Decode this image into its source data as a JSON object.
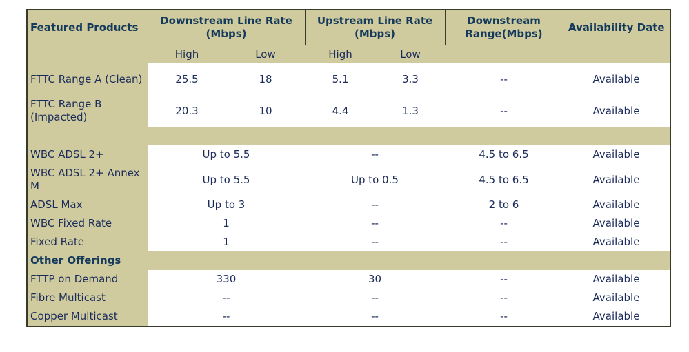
{
  "header": {
    "featured": "Featured Products",
    "downstream": "Downstream Line Rate (Mbps)",
    "upstream": "Upstream Line Rate (Mbps)",
    "range": "Downstream Range(Mbps)",
    "availability": "Availability Date"
  },
  "subheader": {
    "high": "High",
    "low": "Low"
  },
  "fttc_rows": [
    {
      "product": "FTTC Range A (Clean)",
      "down_high": "25.5",
      "down_low": "18",
      "up_high": "5.1",
      "up_low": "3.3",
      "range": "--",
      "availability": "Available"
    },
    {
      "product": "FTTC Range B (Impacted)",
      "down_high": "20.3",
      "down_low": "10",
      "up_high": "4.4",
      "up_low": "1.3",
      "range": "--",
      "availability": "Available"
    }
  ],
  "other_rows": [
    {
      "product": "WBC ADSL 2+",
      "down": "Up to 5.5",
      "up": "--",
      "range": "4.5 to 6.5",
      "availability": "Available"
    },
    {
      "product": "WBC ADSL 2+ Annex M",
      "down": "Up to 5.5",
      "up": "Up to 0.5",
      "range": "4.5 to 6.5",
      "availability": "Available"
    },
    {
      "product": "ADSL Max",
      "down": "Up to 3",
      "up": "--",
      "range": "2 to 6",
      "availability": "Available"
    },
    {
      "product": "WBC Fixed Rate",
      "down": "1",
      "up": "--",
      "range": "--",
      "availability": "Available"
    },
    {
      "product": "Fixed Rate",
      "down": "1",
      "up": "--",
      "range": "--",
      "availability": "Available"
    }
  ],
  "section_title": "Other Offerings",
  "offering_rows": [
    {
      "product": "FTTP on Demand",
      "down": "330",
      "up": "30",
      "range": "--",
      "availability": "Available"
    },
    {
      "product": "Fibre Multicast",
      "down": "--",
      "up": "--",
      "range": "--",
      "availability": "Available"
    },
    {
      "product": "Copper Multicast",
      "down": "--",
      "up": "--",
      "range": "--",
      "availability": "Available"
    }
  ]
}
